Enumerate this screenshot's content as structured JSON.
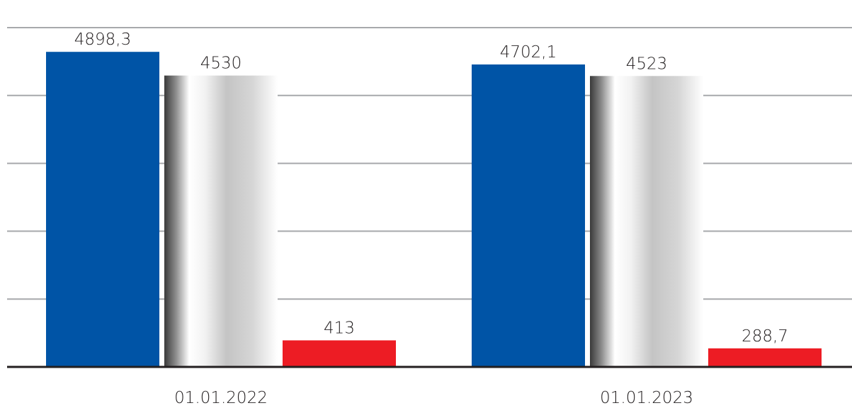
{
  "chart_data": {
    "type": "bar",
    "categories": [
      "01.01.2022",
      "01.01.2023"
    ],
    "series": [
      {
        "values": [
          4898.3,
          4702.1
        ],
        "labels": [
          "4898,3",
          "4702,1"
        ],
        "color": "#0054a6"
      },
      {
        "values": [
          4530,
          4523
        ],
        "labels": [
          "4530",
          "4523"
        ],
        "color": "silver-gradient"
      },
      {
        "values": [
          413,
          288.7
        ],
        "labels": [
          "413",
          "288,7"
        ],
        "color": "#ed1c24"
      }
    ],
    "ylim": [
      0,
      5275
    ],
    "grid": true,
    "gridline_count": 5,
    "legend": "none"
  }
}
